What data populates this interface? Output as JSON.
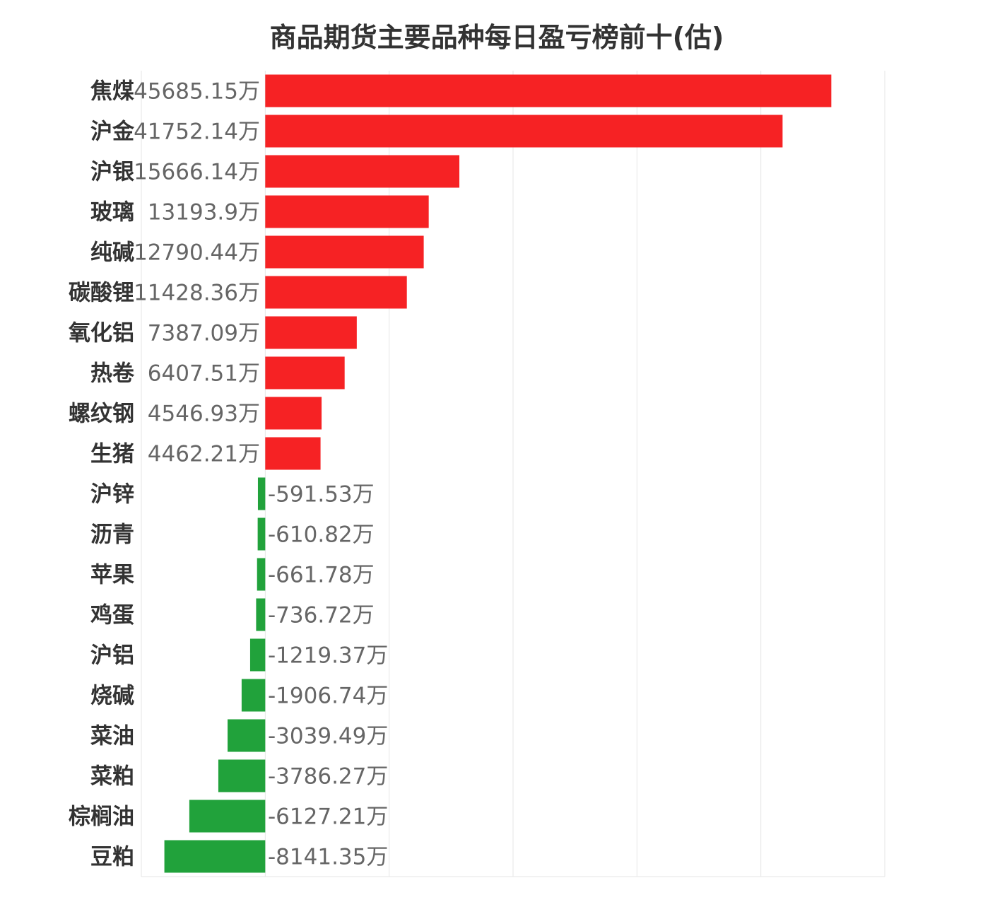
{
  "chart_data": {
    "type": "bar",
    "orientation": "horizontal",
    "title": "商品期货主要品种每日盈亏榜前十(估)",
    "unit_suffix": "万",
    "categories": [
      "焦煤",
      "沪金",
      "沪银",
      "玻璃",
      "纯碱",
      "碳酸锂",
      "氧化铝",
      "热卷",
      "螺纹钢",
      "生猪",
      "沪锌",
      "沥青",
      "苹果",
      "鸡蛋",
      "沪铝",
      "烧碱",
      "菜油",
      "菜粕",
      "棕榈油",
      "豆粕"
    ],
    "values": [
      45685.15,
      41752.14,
      15666.14,
      13193.9,
      12790.44,
      11428.36,
      7387.09,
      6407.51,
      4546.93,
      4462.21,
      -591.53,
      -610.82,
      -661.78,
      -736.72,
      -1219.37,
      -1906.74,
      -3039.49,
      -3786.27,
      -6127.21,
      -8141.35
    ],
    "xlim": [
      -10000,
      50000
    ],
    "grid": true,
    "colors": {
      "positive": "#f62224",
      "negative": "#21a23b"
    }
  }
}
